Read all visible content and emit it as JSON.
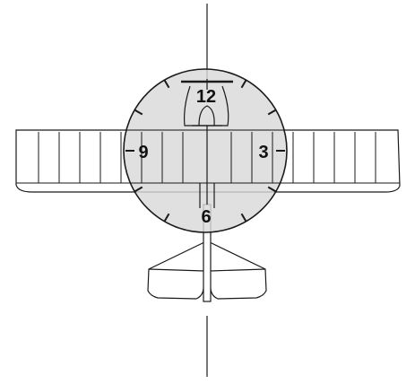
{
  "diagram": {
    "subject": "aircraft-clock-position-overlay",
    "labels": {
      "twelve": "12",
      "three": "3",
      "six": "6",
      "nine": "9"
    },
    "colors": {
      "stroke": "#1a1a1a",
      "circle_fill": "#d9d9d9",
      "background": "#ffffff"
    }
  }
}
